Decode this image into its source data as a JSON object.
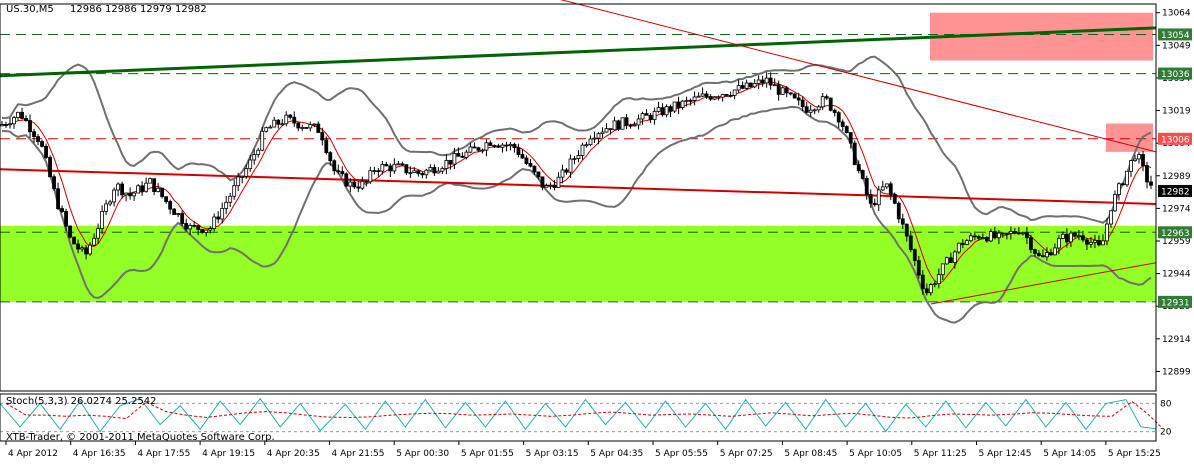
{
  "header": {
    "symbol_label": "US.30,M5",
    "ohlc_label": "12986 12986 12979 12982"
  },
  "indicator": {
    "label": "Stoch(5,3,3) 26.0274 25.2542",
    "axis_ticks": [
      "80",
      "20"
    ],
    "scale_max": 100
  },
  "watermark": "XTB-Trader, © 2001-2011 MetaQuotes Software Corp.",
  "chart_data": {
    "type": "line",
    "title": "",
    "xlabel": "",
    "ylabel": "",
    "ylim": [
      12890,
      13068
    ],
    "x_tick_labels": [
      "4 Apr 2012",
      "4 Apr 16:35",
      "4 Apr 17:55",
      "4 Apr 19:15",
      "4 Apr 20:35",
      "4 Apr 21:55",
      "5 Apr 00:30",
      "5 Apr 01:55",
      "5 Apr 03:15",
      "5 Apr 04:35",
      "5 Apr 05:55",
      "5 Apr 07:25",
      "5 Apr 08:45",
      "5 Apr 10:05",
      "5 Apr 11:25",
      "5 Apr 12:45",
      "5 Apr 14:05",
      "5 Apr 15:25"
    ],
    "y_tick_labels": [
      12899,
      12914,
      12929,
      12944,
      12959,
      12974,
      12989,
      13004,
      13019,
      13034,
      13049,
      13064
    ],
    "price_labels": [
      {
        "value": 13054,
        "text": "13054",
        "color": "#2e7d32"
      },
      {
        "value": 13036,
        "text": "13036",
        "color": "#2e7d32"
      },
      {
        "value": 13006,
        "text": "13006",
        "color": "#ff4d4d"
      },
      {
        "value": 12982,
        "text": "12982",
        "color": "#000000"
      },
      {
        "value": 12963,
        "text": "12963",
        "color": "#2e7d32"
      },
      {
        "value": 12931,
        "text": "12931",
        "color": "#2e7d32"
      }
    ],
    "horizontal_levels": [
      {
        "value": 13054,
        "color": "#1b5e20"
      },
      {
        "value": 13036,
        "color": "#1b5e20"
      },
      {
        "value": 13006,
        "color": "#d00000"
      },
      {
        "value": 12963,
        "color": "#1b5e20"
      },
      {
        "value": 12931,
        "color": "#1b5e20"
      }
    ],
    "zones": [
      {
        "from": 12931,
        "to": 12966,
        "color": "#80ff00"
      },
      {
        "from": 13042,
        "to": 13064,
        "color": "#ff8080"
      },
      {
        "from": 13000,
        "to": 13013,
        "color": "#ff8080"
      }
    ],
    "colors": {
      "bullish_candle": "#ffffff",
      "bearish_candle": "#000000",
      "bollinger": "#707070",
      "moving_average": "#d00000",
      "trendline_green": "#006400",
      "trendline_red": "#d00000",
      "stoch_main": "#20b2aa",
      "stoch_signal": "#d00000"
    },
    "trendlines": [
      {
        "color": "#006400",
        "from": [
          0,
          13035
        ],
        "to": [
          1155,
          13057
        ]
      },
      {
        "color": "#d00000",
        "from": [
          0,
          12992
        ],
        "to": [
          1155,
          12976
        ]
      },
      {
        "color": "#d00000",
        "from": [
          365,
          13093
        ],
        "to": [
          1155,
          13000
        ]
      },
      {
        "color": "#d00000",
        "from": [
          930,
          12930
        ],
        "to": [
          1155,
          12949
        ]
      }
    ],
    "close_profile": [
      [
        0,
        13012
      ],
      [
        20,
        13018
      ],
      [
        40,
        13005
      ],
      [
        55,
        12980
      ],
      [
        70,
        12960
      ],
      [
        85,
        12952
      ],
      [
        100,
        12968
      ],
      [
        115,
        12985
      ],
      [
        130,
        12980
      ],
      [
        150,
        12986
      ],
      [
        170,
        12975
      ],
      [
        190,
        12965
      ],
      [
        210,
        12965
      ],
      [
        230,
        12980
      ],
      [
        250,
        12995
      ],
      [
        265,
        13010
      ],
      [
        285,
        13015
      ],
      [
        305,
        13012
      ],
      [
        320,
        13010
      ],
      [
        335,
        12990
      ],
      [
        350,
        12985
      ],
      [
        365,
        12985
      ],
      [
        375,
        12993
      ],
      [
        395,
        12993
      ],
      [
        420,
        12990
      ],
      [
        445,
        12995
      ],
      [
        470,
        13000
      ],
      [
        490,
        13005
      ],
      [
        515,
        13002
      ],
      [
        530,
        12992
      ],
      [
        545,
        12983
      ],
      [
        560,
        12988
      ],
      [
        575,
        12998
      ],
      [
        590,
        13008
      ],
      [
        610,
        13012
      ],
      [
        640,
        13015
      ],
      [
        670,
        13020
      ],
      [
        700,
        13025
      ],
      [
        730,
        13028
      ],
      [
        750,
        13030
      ],
      [
        765,
        13033
      ],
      [
        785,
        13026
      ],
      [
        805,
        13020
      ],
      [
        825,
        13024
      ],
      [
        840,
        13015
      ],
      [
        855,
        12995
      ],
      [
        870,
        12975
      ],
      [
        885,
        12985
      ],
      [
        895,
        12975
      ],
      [
        910,
        12955
      ],
      [
        925,
        12935
      ],
      [
        940,
        12945
      ],
      [
        960,
        12958
      ],
      [
        980,
        12962
      ],
      [
        1000,
        12960
      ],
      [
        1020,
        12965
      ],
      [
        1040,
        12950
      ],
      [
        1060,
        12960
      ],
      [
        1080,
        12962
      ],
      [
        1100,
        12955
      ],
      [
        1110,
        12975
      ],
      [
        1125,
        12990
      ],
      [
        1135,
        13000
      ],
      [
        1145,
        12988
      ],
      [
        1155,
        12982
      ]
    ],
    "stochastic_profile": [
      [
        0,
        80
      ],
      [
        20,
        30
      ],
      [
        40,
        80
      ],
      [
        60,
        25
      ],
      [
        80,
        85
      ],
      [
        100,
        20
      ],
      [
        120,
        75
      ],
      [
        140,
        90
      ],
      [
        160,
        35
      ],
      [
        180,
        75
      ],
      [
        200,
        25
      ],
      [
        220,
        85
      ],
      [
        240,
        35
      ],
      [
        260,
        90
      ],
      [
        280,
        30
      ],
      [
        300,
        80
      ],
      [
        320,
        22
      ],
      [
        345,
        78
      ],
      [
        365,
        25
      ],
      [
        385,
        85
      ],
      [
        405,
        30
      ],
      [
        425,
        88
      ],
      [
        445,
        28
      ],
      [
        465,
        82
      ],
      [
        485,
        30
      ],
      [
        505,
        85
      ],
      [
        525,
        25
      ],
      [
        545,
        80
      ],
      [
        565,
        30
      ],
      [
        585,
        88
      ],
      [
        605,
        35
      ],
      [
        625,
        82
      ],
      [
        645,
        28
      ],
      [
        665,
        85
      ],
      [
        685,
        30
      ],
      [
        705,
        80
      ],
      [
        725,
        25
      ],
      [
        745,
        88
      ],
      [
        765,
        32
      ],
      [
        785,
        82
      ],
      [
        805,
        25
      ],
      [
        825,
        88
      ],
      [
        845,
        30
      ],
      [
        865,
        80
      ],
      [
        885,
        20
      ],
      [
        905,
        78
      ],
      [
        925,
        30
      ],
      [
        945,
        85
      ],
      [
        965,
        28
      ],
      [
        985,
        82
      ],
      [
        1005,
        32
      ],
      [
        1025,
        88
      ],
      [
        1045,
        30
      ],
      [
        1065,
        82
      ],
      [
        1085,
        25
      ],
      [
        1105,
        80
      ],
      [
        1125,
        88
      ],
      [
        1140,
        30
      ],
      [
        1155,
        26
      ]
    ]
  }
}
